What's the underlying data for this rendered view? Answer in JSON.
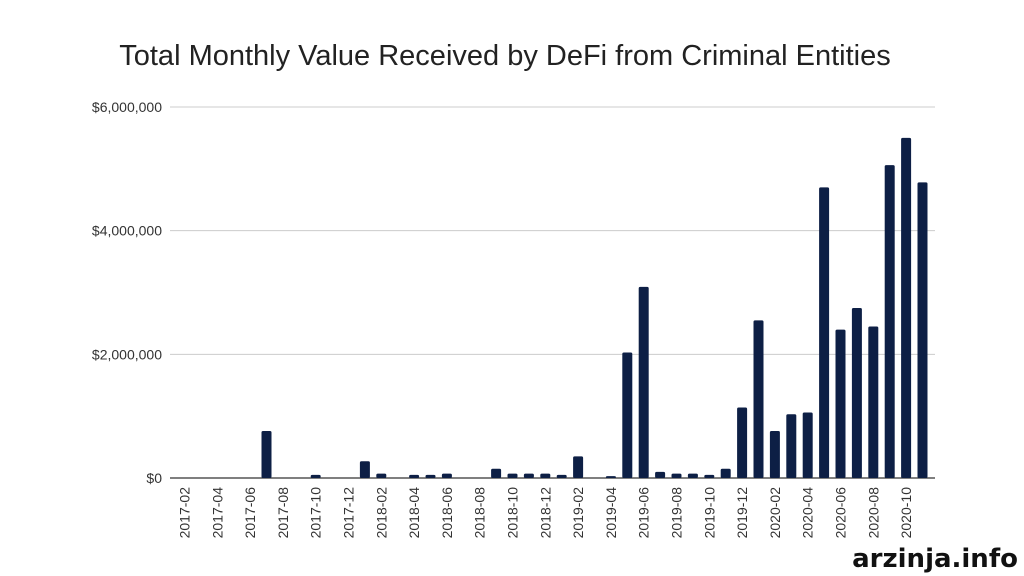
{
  "chart_data": {
    "type": "bar",
    "title": "Total Monthly Value Received by DeFi from Criminal Entities",
    "ylim": [
      0,
      6000000
    ],
    "yticks": [
      "$6,000,000",
      "$4,000,000",
      "$2,000,000",
      "$0"
    ],
    "ytick_values": [
      6000000,
      4000000,
      2000000,
      0
    ],
    "grid": true,
    "bar_color": "#0d1f45",
    "categories": [
      "2017-02",
      "2017-03",
      "2017-04",
      "2017-05",
      "2017-06",
      "2017-07",
      "2017-08",
      "2017-09",
      "2017-10",
      "2017-11",
      "2017-12",
      "2018-01",
      "2018-02",
      "2018-03",
      "2018-04",
      "2018-05",
      "2018-06",
      "2018-07",
      "2018-08",
      "2018-09",
      "2018-10",
      "2018-11",
      "2018-12",
      "2019-01",
      "2019-02",
      "2019-03",
      "2019-04",
      "2019-05",
      "2019-06",
      "2019-07",
      "2019-08",
      "2019-09",
      "2019-10",
      "2019-11",
      "2019-12",
      "2020-01",
      "2020-02",
      "2020-03",
      "2020-04",
      "2020-05",
      "2020-06",
      "2020-07",
      "2020-08",
      "2020-09",
      "2020-10",
      "2020-11"
    ],
    "xtick_labels": [
      "2017-02",
      "2017-04",
      "2017-06",
      "2017-08",
      "2017-10",
      "2017-12",
      "2018-02",
      "2018-04",
      "2018-06",
      "2018-08",
      "2018-10",
      "2018-12",
      "2019-02",
      "2019-04",
      "2019-06",
      "2019-08",
      "2019-10",
      "2019-12",
      "2020-02",
      "2020-04",
      "2020-06",
      "2020-08",
      "2020-10"
    ],
    "values": [
      0,
      0,
      0,
      0,
      0,
      760000,
      0,
      0,
      50000,
      0,
      0,
      270000,
      70000,
      0,
      50000,
      50000,
      70000,
      0,
      0,
      150000,
      70000,
      70000,
      70000,
      50000,
      350000,
      0,
      30000,
      2030000,
      3090000,
      100000,
      70000,
      70000,
      50000,
      150000,
      1140000,
      2550000,
      760000,
      1030000,
      1060000,
      4700000,
      2400000,
      2750000,
      2450000,
      5060000,
      5500000,
      4780000
    ]
  },
  "watermark": "arzinja.info"
}
